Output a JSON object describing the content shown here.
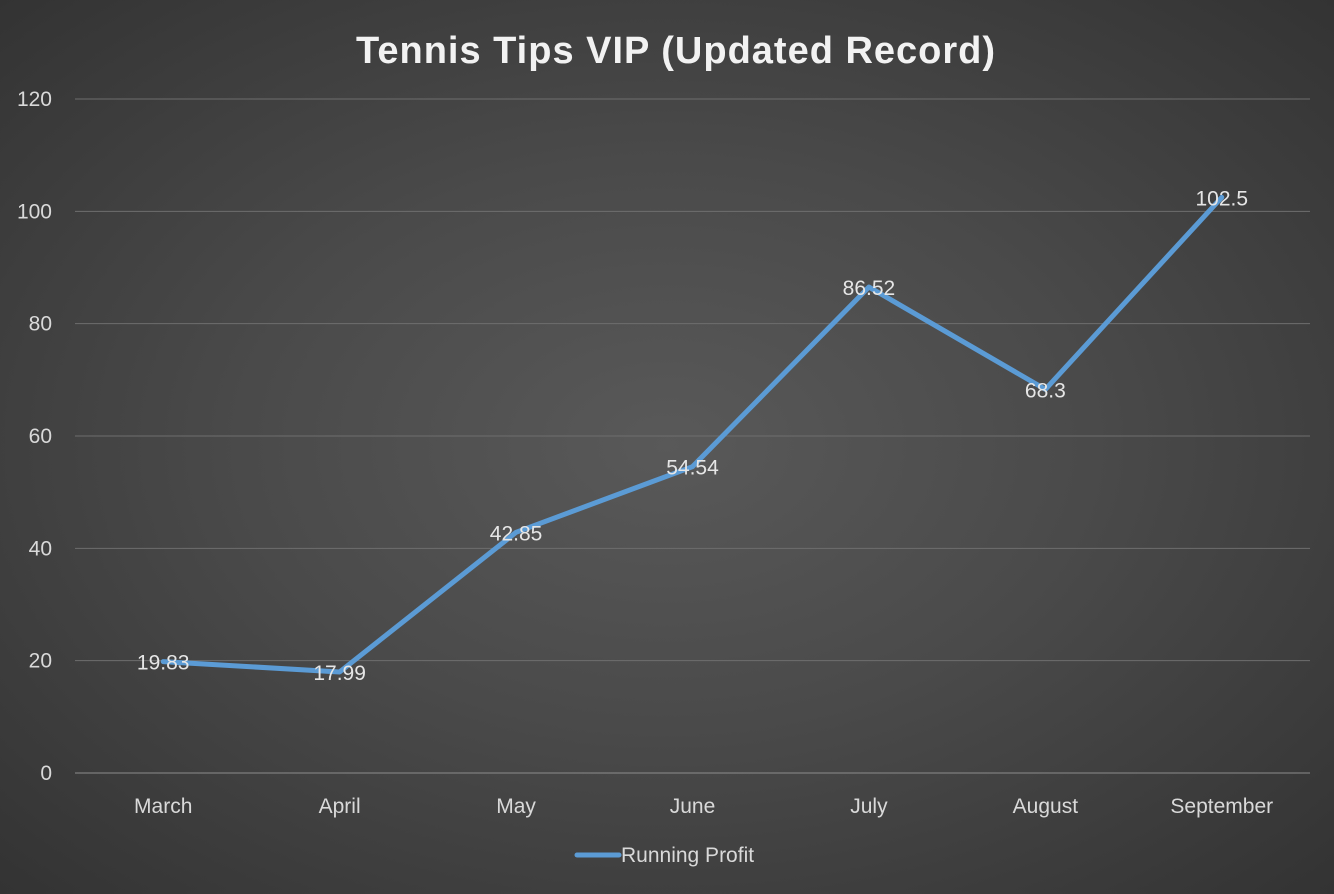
{
  "chart_data": {
    "type": "line",
    "title": "Tennis Tips VIP (Updated Record)",
    "xlabel": "",
    "ylabel": "",
    "categories": [
      "March",
      "April",
      "May",
      "June",
      "July",
      "August",
      "September"
    ],
    "series": [
      {
        "name": "Running Profit",
        "values": [
          19.83,
          17.99,
          42.85,
          54.54,
          86.52,
          68.3,
          102.5
        ],
        "data_labels": [
          "19.83",
          "17.99",
          "42.85",
          "54.54",
          "86.52",
          "68.3",
          "102.5"
        ],
        "color": "#5b9bd5"
      }
    ],
    "ylim": [
      0,
      120
    ],
    "yticks": [
      0,
      20,
      40,
      60,
      80,
      100,
      120
    ],
    "ytick_labels": [
      "0",
      "20",
      "40",
      "60",
      "80",
      "100",
      "120"
    ],
    "grid": true,
    "legend_position": "bottom"
  }
}
